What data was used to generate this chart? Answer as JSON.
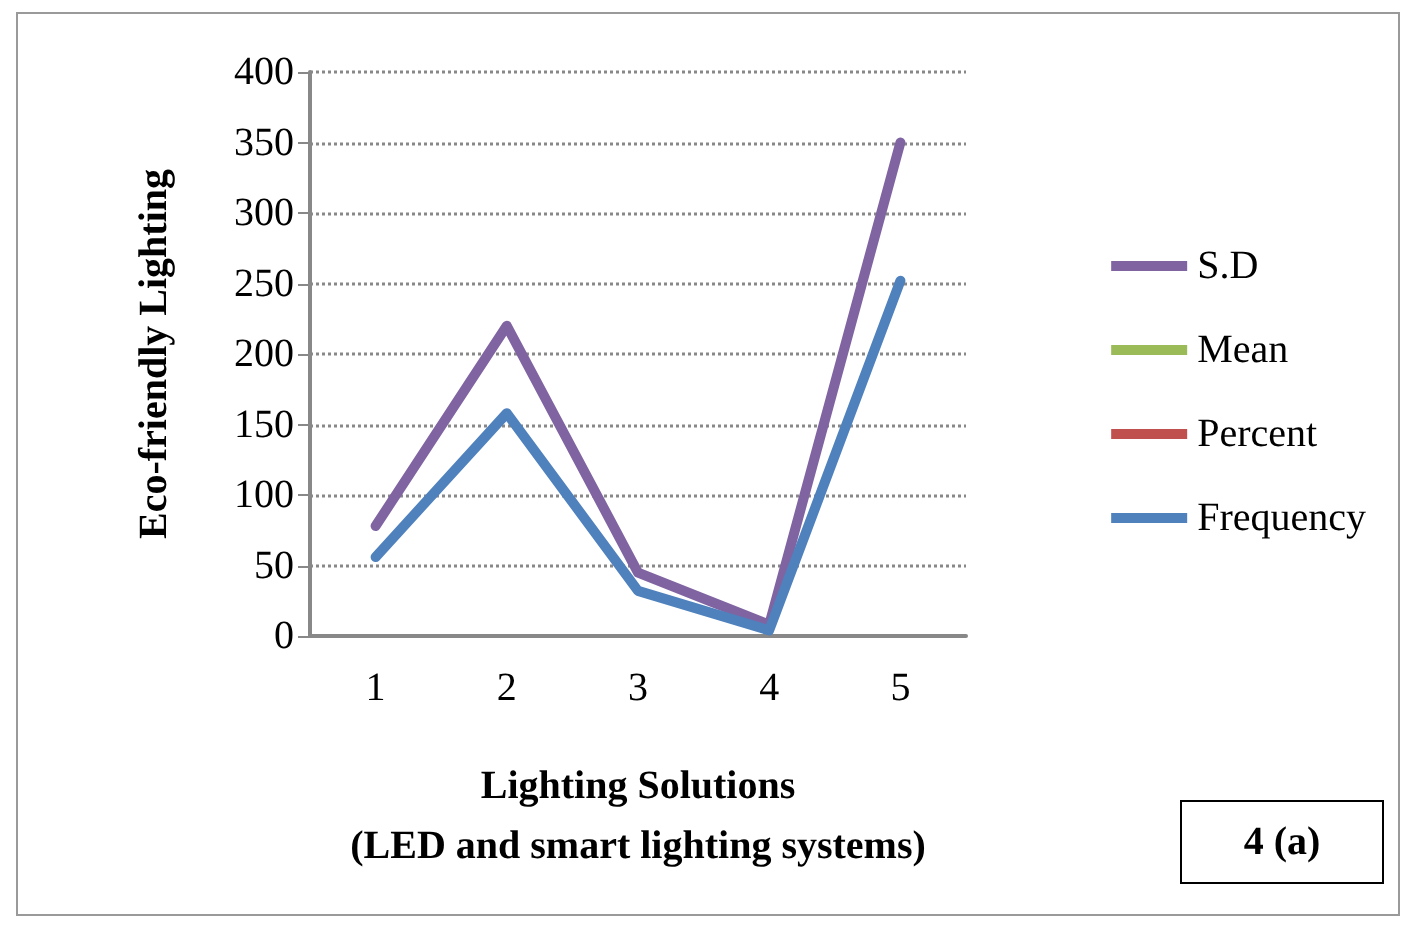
{
  "chart_data": {
    "type": "line",
    "xlabel": "Lighting Solutions\n(LED and smart lighting systems)",
    "ylabel": "Eco-friendly Lighting",
    "categories": [
      "1",
      "2",
      "3",
      "4",
      "5"
    ],
    "series": [
      {
        "name": "S.D",
        "color": "#8064a2",
        "values": [
          78,
          220,
          45,
          8,
          350
        ]
      },
      {
        "name": "Mean",
        "color": "#9bbb59",
        "values": [
          null,
          null,
          null,
          null,
          null
        ]
      },
      {
        "name": "Percent",
        "color": "#c0504d",
        "values": [
          null,
          null,
          null,
          null,
          null
        ]
      },
      {
        "name": "Frequency",
        "color": "#4f81bd",
        "values": [
          56,
          158,
          32,
          4,
          252
        ]
      }
    ],
    "ylim": [
      0,
      400
    ],
    "yticks": [
      0,
      50,
      100,
      150,
      200,
      250,
      300,
      350,
      400
    ],
    "grid": "y",
    "legend": "right",
    "marker": "none",
    "line_style": "solid",
    "annotations": [
      "4 (a)"
    ]
  }
}
